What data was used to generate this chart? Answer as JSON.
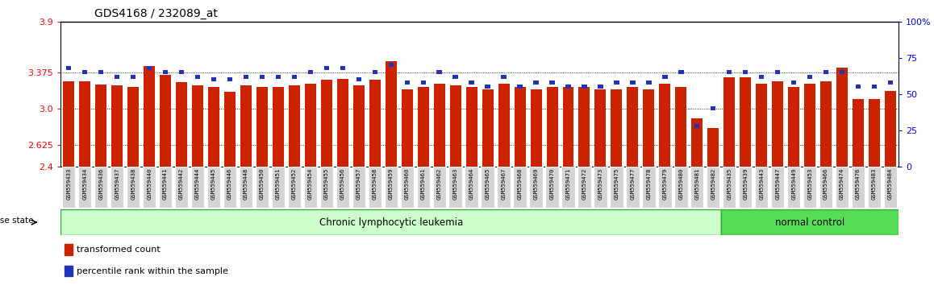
{
  "title": "GDS4168 / 232089_at",
  "samples": [
    "GSM559433",
    "GSM559434",
    "GSM559436",
    "GSM559437",
    "GSM559438",
    "GSM559440",
    "GSM559441",
    "GSM559442",
    "GSM559444",
    "GSM559445",
    "GSM559446",
    "GSM559448",
    "GSM559450",
    "GSM559451",
    "GSM559452",
    "GSM559454",
    "GSM559455",
    "GSM559456",
    "GSM559457",
    "GSM559458",
    "GSM559459",
    "GSM559460",
    "GSM559461",
    "GSM559462",
    "GSM559463",
    "GSM559464",
    "GSM559465",
    "GSM559467",
    "GSM559468",
    "GSM559469",
    "GSM559470",
    "GSM559471",
    "GSM559472",
    "GSM559473",
    "GSM559475",
    "GSM559477",
    "GSM559478",
    "GSM559479",
    "GSM559480",
    "GSM559481",
    "GSM559482",
    "GSM559435",
    "GSM559439",
    "GSM559443",
    "GSM559447",
    "GSM559449",
    "GSM559453",
    "GSM559466",
    "GSM559474",
    "GSM559476",
    "GSM559483",
    "GSM559484"
  ],
  "red_values": [
    3.28,
    3.28,
    3.25,
    3.24,
    3.22,
    3.44,
    3.35,
    3.27,
    3.24,
    3.22,
    3.17,
    3.24,
    3.22,
    3.22,
    3.24,
    3.26,
    3.3,
    3.31,
    3.24,
    3.3,
    3.49,
    3.2,
    3.22,
    3.26,
    3.24,
    3.22,
    3.2,
    3.26,
    3.22,
    3.2,
    3.22,
    3.22,
    3.22,
    3.2,
    3.2,
    3.22,
    3.2,
    3.26,
    3.22,
    2.9,
    2.8,
    3.32,
    3.32,
    3.26,
    3.28,
    3.22,
    3.26,
    3.28,
    3.42,
    3.1,
    3.1,
    3.18
  ],
  "blue_values": [
    68,
    65,
    65,
    62,
    62,
    68,
    65,
    65,
    62,
    60,
    60,
    62,
    62,
    62,
    62,
    65,
    68,
    68,
    60,
    65,
    70,
    58,
    58,
    65,
    62,
    58,
    55,
    62,
    55,
    58,
    58,
    55,
    55,
    55,
    58,
    58,
    58,
    62,
    65,
    28,
    40,
    65,
    65,
    62,
    65,
    58,
    62,
    65,
    65,
    55,
    55,
    58
  ],
  "group_labels": [
    "Chronic lymphocytic leukemia",
    "normal control"
  ],
  "group_ranges": [
    [
      0,
      40
    ],
    [
      41,
      51
    ]
  ],
  "ymin": 2.4,
  "ymax": 3.9,
  "yticks_left": [
    2.4,
    2.625,
    3.0,
    3.375,
    3.9
  ],
  "yticks_right": [
    0,
    25,
    50,
    75,
    100
  ],
  "bar_color": "#cc2200",
  "blue_color": "#2233bb",
  "bar_baseline": 2.4,
  "disease_state_label": "disease state",
  "legend_items": [
    "transformed count",
    "percentile rank within the sample"
  ],
  "cll_color": "#ccffcc",
  "nc_color": "#55dd55",
  "group_border_color": "#33aa33"
}
